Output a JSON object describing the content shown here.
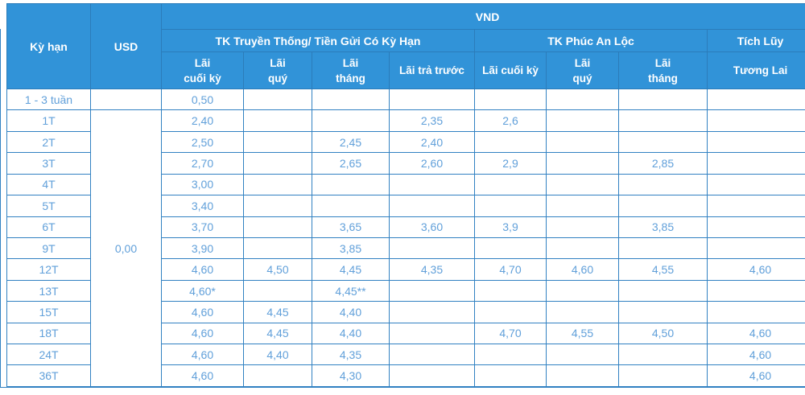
{
  "colors": {
    "header_bg": "#3193d8",
    "header_text": "#ffffff",
    "header_border": "#2b7cba",
    "cell_border": "#3181c2",
    "value_text": "#61a0da",
    "background": "#ffffff"
  },
  "table": {
    "header": {
      "period": "Kỳ hạn",
      "usd": "USD",
      "vnd": "VND",
      "groups": [
        {
          "label": "TK Truyền Thống/ Tiền Gửi Có Kỳ Hạn"
        },
        {
          "label": "TK Phúc An Lộc"
        },
        {
          "label": "Tích Lũy"
        }
      ],
      "subheaders": [
        "Lãi\ncuối kỳ",
        "Lãi\nquý",
        "Lãi\ntháng",
        "Lãi trả trước",
        "Lãi cuối kỳ",
        "Lãi\nquý",
        "Lãi\ntháng",
        "Tương Lai"
      ]
    },
    "usd_rate": "0,00",
    "rows": [
      {
        "label": "1 - 3 tuần",
        "cells": [
          "0,50",
          "",
          "",
          "",
          "",
          "",
          "",
          ""
        ]
      },
      {
        "label": "1T",
        "cells": [
          "2,40",
          "",
          "",
          "2,35",
          "2,6",
          "",
          "",
          ""
        ]
      },
      {
        "label": "2T",
        "cells": [
          "2,50",
          "",
          "2,45",
          "2,40",
          "",
          "",
          "",
          ""
        ]
      },
      {
        "label": "3T",
        "cells": [
          "2,70",
          "",
          "2,65",
          "2,60",
          "2,9",
          "",
          "2,85",
          ""
        ]
      },
      {
        "label": "4T",
        "cells": [
          "3,00",
          "",
          "",
          "",
          "",
          "",
          "",
          ""
        ]
      },
      {
        "label": "5T",
        "cells": [
          "3,40",
          "",
          "",
          "",
          "",
          "",
          "",
          ""
        ]
      },
      {
        "label": "6T",
        "cells": [
          "3,70",
          "",
          "3,65",
          "3,60",
          "3,9",
          "",
          "3,85",
          ""
        ]
      },
      {
        "label": "9T",
        "cells": [
          "3,90",
          "",
          "3,85",
          "",
          "",
          "",
          "",
          ""
        ]
      },
      {
        "label": "12T",
        "cells": [
          "4,60",
          "4,50",
          "4,45",
          "4,35",
          "4,70",
          "4,60",
          "4,55",
          "4,60"
        ]
      },
      {
        "label": "13T",
        "cells": [
          "4,60*",
          "",
          "4,45**",
          "",
          "",
          "",
          "",
          ""
        ]
      },
      {
        "label": "15T",
        "cells": [
          "4,60",
          "4,45",
          "4,40",
          "",
          "",
          "",
          "",
          ""
        ]
      },
      {
        "label": "18T",
        "cells": [
          "4,60",
          "4,45",
          "4,40",
          "",
          "4,70",
          "4,55",
          "4,50",
          "4,60"
        ]
      },
      {
        "label": "24T",
        "cells": [
          "4,60",
          "4,40",
          "4,35",
          "",
          "",
          "",
          "",
          "4,60"
        ]
      },
      {
        "label": "36T",
        "cells": [
          "4,60",
          "",
          "4,30",
          "",
          "",
          "",
          "",
          "4,60"
        ]
      }
    ]
  }
}
